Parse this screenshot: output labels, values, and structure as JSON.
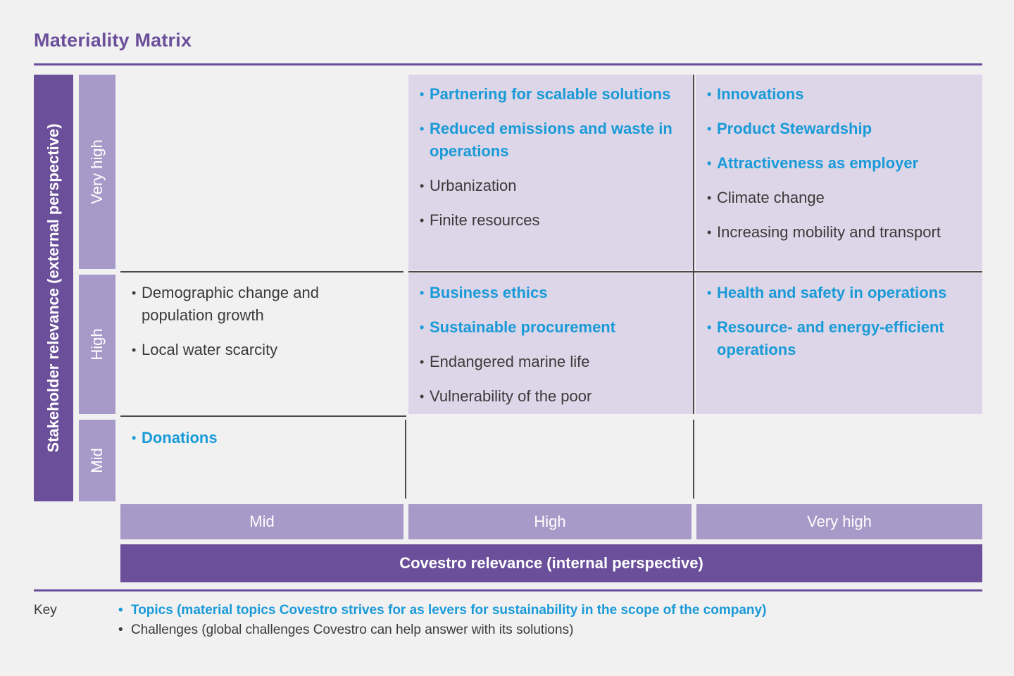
{
  "title": "Materiality Matrix",
  "colors": {
    "accent_purple": "#6b4f9a",
    "level_purple": "#a89ac8",
    "cell_shade": "#dcd6e8",
    "topic_blue": "#1a9ad7",
    "challenge_gray": "#3a3a3a"
  },
  "y_axis": {
    "label": "Stakeholder relevance (external perspective)",
    "levels": [
      "Very high",
      "High",
      "Mid"
    ]
  },
  "x_axis": {
    "label": "Covestro relevance (internal perspective)",
    "levels": [
      "Mid",
      "High",
      "Very high"
    ]
  },
  "cells": {
    "very_high_mid": {
      "items": []
    },
    "very_high_high": {
      "items": [
        {
          "text": "Partnering for scalable solutions",
          "kind": "topic"
        },
        {
          "text": "Reduced emissions and waste in operations",
          "kind": "topic"
        },
        {
          "text": "Urbanization",
          "kind": "challenge"
        },
        {
          "text": "Finite resources",
          "kind": "challenge"
        }
      ]
    },
    "very_high_very_high": {
      "items": [
        {
          "text": "Innovations",
          "kind": "topic"
        },
        {
          "text": "Product Stewardship",
          "kind": "topic"
        },
        {
          "text": "Attractiveness as employer",
          "kind": "topic"
        },
        {
          "text": "Climate change",
          "kind": "challenge"
        },
        {
          "text": "Increasing mobility and transport",
          "kind": "challenge"
        }
      ]
    },
    "high_mid": {
      "items": [
        {
          "text": "Demographic change and population growth",
          "kind": "challenge"
        },
        {
          "text": "Local water scarcity",
          "kind": "challenge"
        }
      ]
    },
    "high_high": {
      "items": [
        {
          "text": "Business ethics",
          "kind": "topic"
        },
        {
          "text": "Sustainable procurement",
          "kind": "topic"
        },
        {
          "text": "Endangered marine life",
          "kind": "challenge"
        },
        {
          "text": "Vulnerability of the poor",
          "kind": "challenge"
        }
      ]
    },
    "high_very_high": {
      "items": [
        {
          "text": "Health and safety in operations",
          "kind": "topic"
        },
        {
          "text": "Resource- and energy-efficient operations",
          "kind": "topic"
        }
      ]
    },
    "mid_mid": {
      "items": [
        {
          "text": "Donations",
          "kind": "topic"
        }
      ]
    },
    "mid_high": {
      "items": []
    },
    "mid_very_high": {
      "items": []
    }
  },
  "key": {
    "label": "Key",
    "topics": "Topics (material topics Covestro strives for as levers for sustainability in the scope of the company)",
    "challenges": "Challenges (global challenges Covestro can help answer with its solutions)"
  }
}
